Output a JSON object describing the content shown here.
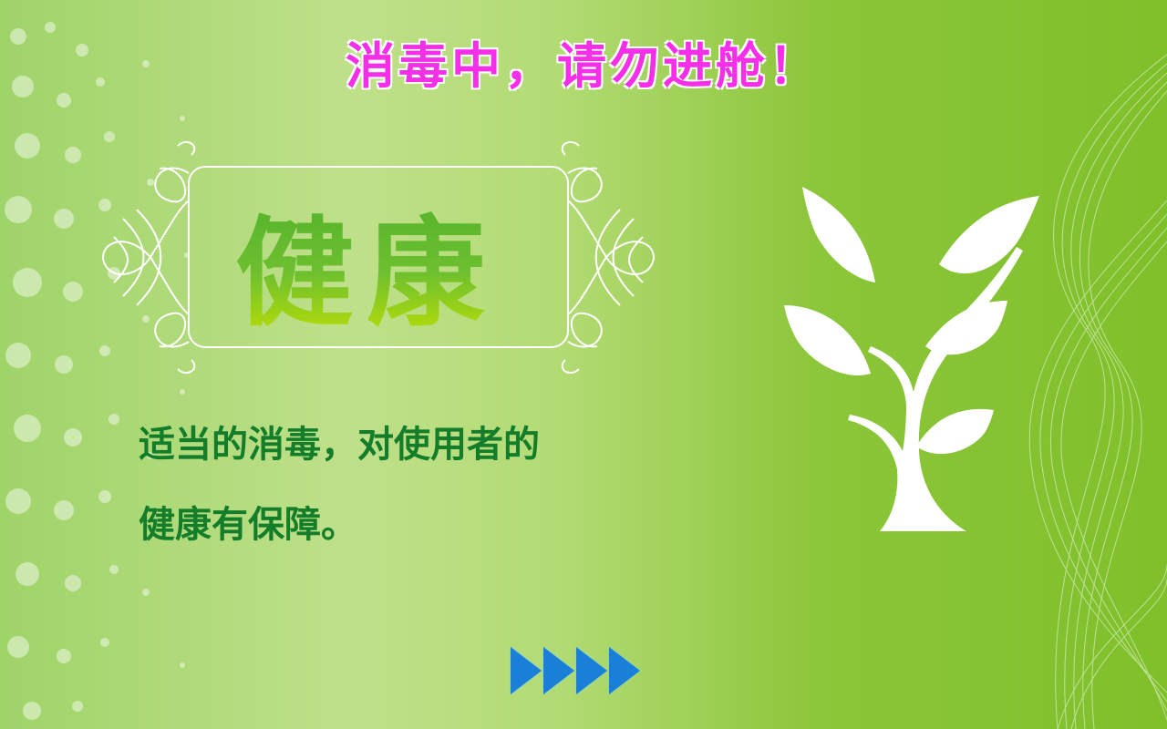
{
  "header": {
    "title": "消毒中，请勿进舱！"
  },
  "main": {
    "heading": "健康",
    "body_line1": "适当的消毒，对使用者的",
    "body_line2": "健康有保障。"
  },
  "colors": {
    "title": "#f52ee8",
    "body": "#137d2a",
    "arrow": "#1a7fd6"
  },
  "icons": {
    "decor_arrows": "triangle-right",
    "tree": "tree-icon"
  }
}
